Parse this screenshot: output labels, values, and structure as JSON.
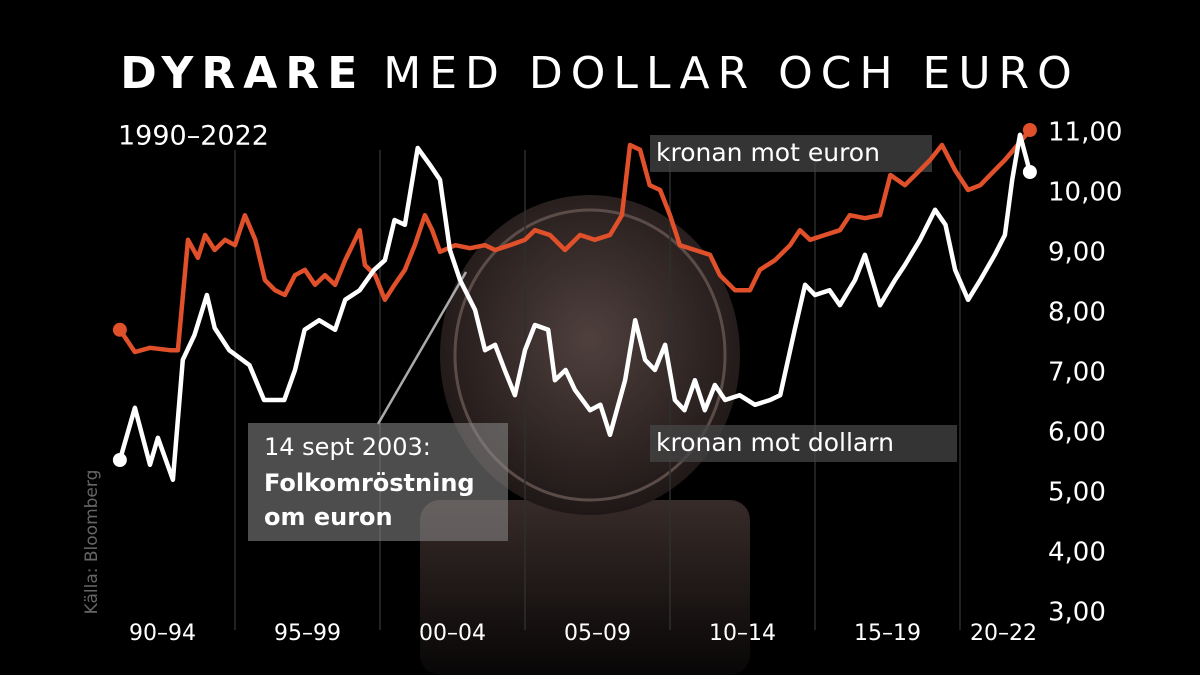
{
  "chart_data": {
    "type": "line",
    "title_bold": "DYRARE",
    "title": "MED DOLLAR OCH EURO",
    "subtitle": "1990–2022",
    "source": "Källa: Bloomberg",
    "annotation": {
      "date": "14 sept 2003:",
      "lines": [
        "Folkomröstning",
        "om euron"
      ]
    },
    "xlim": [
      1990,
      2023
    ],
    "xticks": [
      {
        "value": 1992.5,
        "label": "90–94"
      },
      {
        "value": 1997.5,
        "label": "95–99"
      },
      {
        "value": 2002.5,
        "label": "00–04"
      },
      {
        "value": 2007.5,
        "label": "05–09"
      },
      {
        "value": 2012.5,
        "label": "10–14"
      },
      {
        "value": 2017.5,
        "label": "15–19"
      },
      {
        "value": 2021.5,
        "label": "20–22"
      }
    ],
    "xgrid": [
      1995,
      2000,
      2005,
      2010,
      2015,
      2020
    ],
    "ylim": [
      3,
      11
    ],
    "yticks": [
      {
        "value": 3,
        "label": "3,00"
      },
      {
        "value": 4,
        "label": "4,00"
      },
      {
        "value": 5,
        "label": "5,00"
      },
      {
        "value": 6,
        "label": "6,00"
      },
      {
        "value": 7,
        "label": "7,00"
      },
      {
        "value": 8,
        "label": "8,00"
      },
      {
        "value": 9,
        "label": "9,00"
      },
      {
        "value": 10,
        "label": "10,00"
      },
      {
        "value": 11,
        "label": "11,00"
      }
    ],
    "series": [
      {
        "name": "kronan mot euron",
        "color": "#e0502a",
        "x": [
          1991.03,
          1991.55,
          1992.07,
          1992.76,
          1993.03,
          1993.38,
          1993.72,
          1993.97,
          1994.3,
          1994.66,
          1995.0,
          1995.34,
          1995.7,
          1996.03,
          1996.38,
          1996.72,
          1997.07,
          1997.41,
          1997.76,
          1998.1,
          1998.45,
          1998.8,
          1999.14,
          1999.3,
          1999.48,
          1999.83,
          2000.17,
          2000.5,
          2000.86,
          2001.2,
          2001.55,
          2001.8,
          2002.07,
          2002.6,
          2003.1,
          2003.62,
          2003.97,
          2004.48,
          2005.0,
          2005.34,
          2005.86,
          2006.38,
          2006.9,
          2007.4,
          2007.93,
          2008.34,
          2008.62,
          2008.97,
          2009.3,
          2009.66,
          2010.0,
          2010.34,
          2010.86,
          2011.38,
          2011.72,
          2012.24,
          2012.76,
          2013.1,
          2013.62,
          2014.14,
          2014.48,
          2014.83,
          2015.34,
          2015.86,
          2016.2,
          2016.72,
          2017.24,
          2017.6,
          2018.1,
          2018.62,
          2018.97,
          2019.38,
          2019.83,
          2020.28,
          2020.7,
          2021.2,
          2021.55,
          2021.9,
          2022.41
        ],
        "values": [
          7.72,
          7.35,
          7.42,
          7.38,
          7.38,
          9.22,
          8.92,
          9.3,
          9.05,
          9.22,
          9.13,
          9.63,
          9.22,
          8.55,
          8.38,
          8.3,
          8.63,
          8.72,
          8.47,
          8.63,
          8.47,
          8.88,
          9.22,
          9.38,
          8.8,
          8.63,
          8.22,
          8.47,
          8.72,
          9.13,
          9.63,
          9.38,
          9.02,
          9.13,
          9.08,
          9.13,
          9.05,
          9.13,
          9.22,
          9.38,
          9.3,
          9.05,
          9.3,
          9.22,
          9.3,
          9.63,
          10.8,
          10.72,
          10.13,
          10.05,
          9.63,
          9.13,
          9.05,
          8.97,
          8.63,
          8.38,
          8.38,
          8.72,
          8.88,
          9.13,
          9.38,
          9.22,
          9.3,
          9.38,
          9.63,
          9.58,
          9.63,
          10.3,
          10.13,
          10.38,
          10.55,
          10.8,
          10.38,
          10.05,
          10.13,
          10.38,
          10.55,
          10.75,
          11.05
        ]
      },
      {
        "name": "kronan mot dollarn",
        "color": "#ffffff",
        "x": [
          1991.03,
          1991.55,
          1992.07,
          1992.34,
          1992.86,
          1993.2,
          1993.6,
          1994.03,
          1994.3,
          1994.8,
          1995.5,
          1996.0,
          1996.7,
          1997.07,
          1997.4,
          1997.9,
          1998.45,
          1998.8,
          1999.3,
          1999.8,
          2000.17,
          2000.5,
          2000.86,
          2001.3,
          2001.72,
          2002.07,
          2002.41,
          2002.76,
          2003.28,
          2003.62,
          2003.97,
          2004.3,
          2004.65,
          2005.0,
          2005.34,
          2005.8,
          2006.03,
          2006.4,
          2006.72,
          2007.24,
          2007.6,
          2007.93,
          2008.45,
          2008.8,
          2009.14,
          2009.48,
          2009.83,
          2010.17,
          2010.5,
          2010.86,
          2011.2,
          2011.55,
          2011.9,
          2012.4,
          2012.93,
          2013.45,
          2013.8,
          2014.3,
          2014.66,
          2015.0,
          2015.5,
          2015.86,
          2016.38,
          2016.72,
          2017.24,
          2017.76,
          2018.1,
          2018.62,
          2019.14,
          2019.5,
          2019.83,
          2020.28,
          2020.7,
          2021.2,
          2021.55,
          2021.8,
          2022.07,
          2022.41
        ],
        "values": [
          5.55,
          6.42,
          5.47,
          5.92,
          5.22,
          7.22,
          7.63,
          8.3,
          7.75,
          7.38,
          7.13,
          6.55,
          6.55,
          7.05,
          7.72,
          7.88,
          7.72,
          8.22,
          8.38,
          8.72,
          8.88,
          9.55,
          9.47,
          10.75,
          10.47,
          10.22,
          9.05,
          8.55,
          8.05,
          7.38,
          7.47,
          7.05,
          6.63,
          7.38,
          7.8,
          7.72,
          6.88,
          7.05,
          6.72,
          6.38,
          6.47,
          5.97,
          6.88,
          7.88,
          7.22,
          7.05,
          7.47,
          6.55,
          6.38,
          6.88,
          6.38,
          6.8,
          6.55,
          6.63,
          6.47,
          6.55,
          6.63,
          7.72,
          8.47,
          8.3,
          8.38,
          8.13,
          8.55,
          8.97,
          8.13,
          8.55,
          8.8,
          9.22,
          9.72,
          9.47,
          8.72,
          8.22,
          8.55,
          8.97,
          9.3,
          10.22,
          10.97,
          10.35
        ]
      }
    ]
  }
}
